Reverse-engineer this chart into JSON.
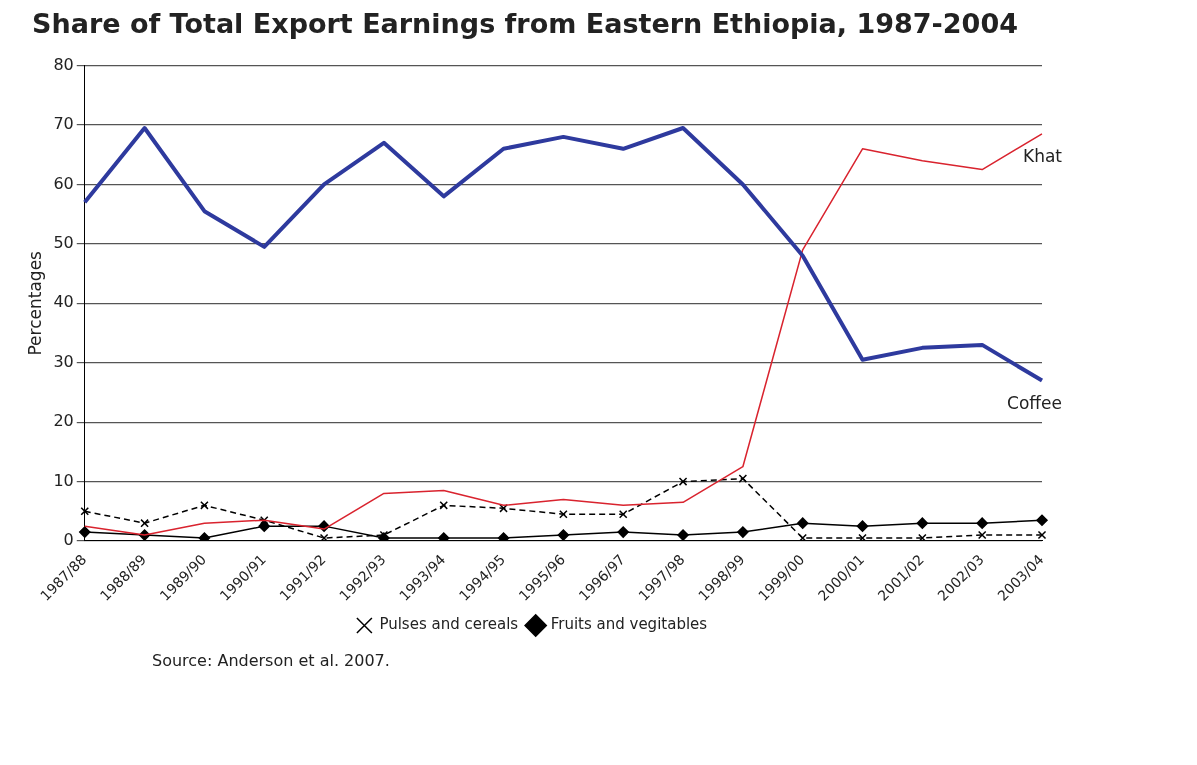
{
  "chart_data": {
    "type": "line",
    "title": "Share of Total Export Earnings from Eastern Ethiopia, 1987-2004",
    "ylabel": "Percentages",
    "categories": [
      "1987/88",
      "1988/89",
      "1989/90",
      "1990/91",
      "1991/92",
      "1992/93",
      "1993/94",
      "1994/95",
      "1995/96",
      "1996/97",
      "1997/98",
      "1998/99",
      "1999/00",
      "2000/01",
      "2001/02",
      "2002/03",
      "2003/04"
    ],
    "series": [
      {
        "name": "Coffee",
        "color": "#2e3a9e",
        "marker": "none",
        "line_style": "solid",
        "values": [
          57,
          69.5,
          55.5,
          49.5,
          60,
          67,
          58,
          66,
          68,
          66,
          69.5,
          60,
          48,
          30.5,
          32.5,
          33,
          27
        ]
      },
      {
        "name": "Khat",
        "color": "#d9232e",
        "marker": "none",
        "line_style": "solid",
        "values": [
          2.5,
          1,
          3,
          3.5,
          2,
          8,
          8.5,
          6,
          7,
          6,
          6.5,
          12.5,
          49,
          66,
          64,
          62.5,
          68.5
        ]
      },
      {
        "name": "Pulses and cereals",
        "color": "#000000",
        "marker": "cross",
        "line_style": "dashed",
        "values": [
          5,
          3,
          6,
          3.5,
          0.5,
          1,
          6,
          5.5,
          4.5,
          4.5,
          10,
          10.5,
          0.5,
          0.5,
          0.5,
          1,
          1
        ]
      },
      {
        "name": "Fruits and vegitables",
        "color": "#000000",
        "marker": "diamond",
        "line_style": "solid",
        "values": [
          1.5,
          1,
          0.5,
          2.5,
          2.5,
          0.5,
          0.5,
          0.5,
          1,
          1.5,
          1,
          1.5,
          3,
          2.5,
          3,
          3,
          3.5
        ]
      }
    ],
    "ylim": [
      0,
      80
    ],
    "yticks": [
      0,
      10,
      20,
      30,
      40,
      50,
      60,
      70,
      80
    ],
    "grid": "y",
    "legend": "bottom",
    "annotations": [
      "Source: Anderson et al. 2007."
    ]
  }
}
